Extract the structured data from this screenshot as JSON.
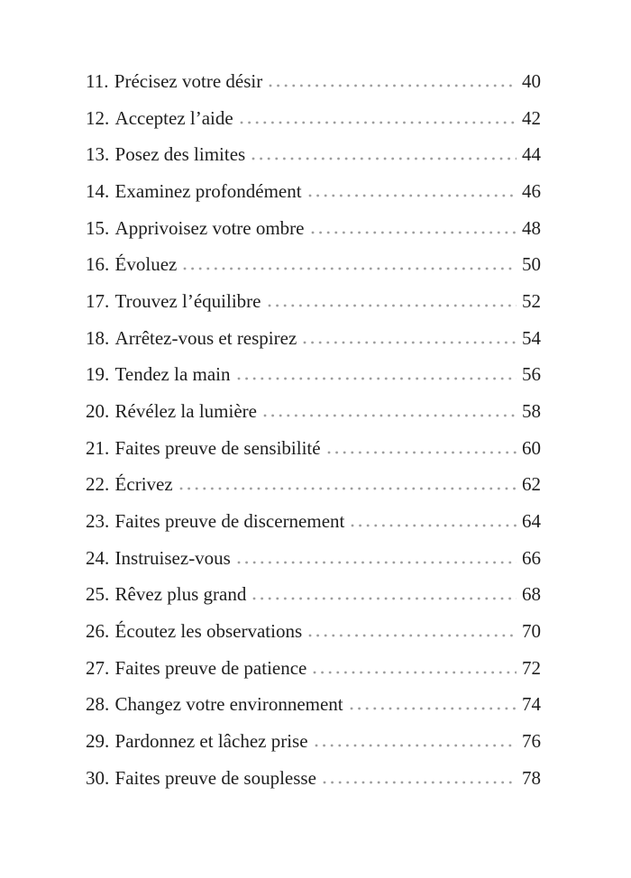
{
  "page": {
    "background": "#ffffff",
    "text_color": "#1e1e1e",
    "dot_color": "#9b9b9b"
  },
  "toc": {
    "entries": [
      {
        "num": "11.",
        "title": "Précisez votre désir",
        "page": "40"
      },
      {
        "num": "12.",
        "title": "Acceptez l’aide",
        "page": "42"
      },
      {
        "num": "13.",
        "title": "Posez des limites",
        "page": "44"
      },
      {
        "num": "14.",
        "title": "Examinez profondément",
        "page": "46"
      },
      {
        "num": "15.",
        "title": "Apprivoisez votre ombre",
        "page": "48"
      },
      {
        "num": "16.",
        "title": "Évoluez",
        "page": "50"
      },
      {
        "num": "17.",
        "title": "Trouvez l’équilibre",
        "page": "52"
      },
      {
        "num": "18.",
        "title": "Arrêtez-vous et respirez",
        "page": "54"
      },
      {
        "num": "19.",
        "title": "Tendez la main",
        "page": "56"
      },
      {
        "num": "20.",
        "title": "Révélez la lumière",
        "page": "58"
      },
      {
        "num": "21.",
        "title": "Faites preuve de sensibilité",
        "page": "60"
      },
      {
        "num": "22.",
        "title": "Écrivez",
        "page": "62"
      },
      {
        "num": "23.",
        "title": "Faites preuve de discernement",
        "page": "64"
      },
      {
        "num": "24.",
        "title": "Instruisez-vous",
        "page": "66"
      },
      {
        "num": "25.",
        "title": "Rêvez plus grand",
        "page": "68"
      },
      {
        "num": "26.",
        "title": "Écoutez les observations",
        "page": "70"
      },
      {
        "num": "27.",
        "title": "Faites preuve de patience",
        "page": "72"
      },
      {
        "num": "28.",
        "title": "Changez votre environnement",
        "page": "74"
      },
      {
        "num": "29.",
        "title": "Pardonnez et lâchez prise",
        "page": "76"
      },
      {
        "num": "30.",
        "title": "Faites preuve de souplesse",
        "page": "78"
      }
    ]
  }
}
